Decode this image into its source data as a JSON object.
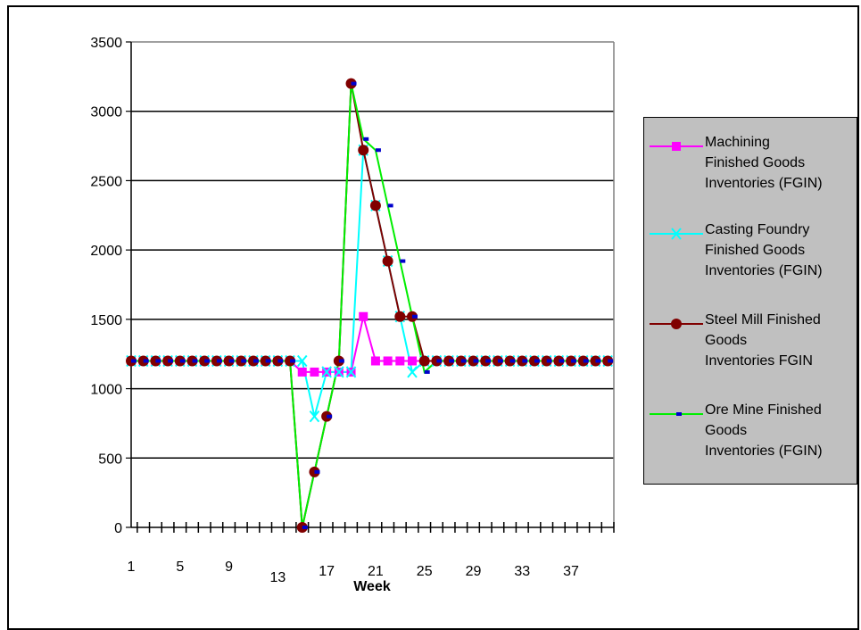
{
  "chart_data": {
    "type": "line",
    "xlabel": "Week",
    "ylabel": "",
    "ylim": [
      0,
      3500
    ],
    "yticks": [
      "0",
      "500",
      "1000",
      "1500",
      "2000",
      "2500",
      "3000",
      "3500"
    ],
    "xtick_labels": [
      {
        "week": 1,
        "label": "1"
      },
      {
        "week": 5,
        "label": "5"
      },
      {
        "week": 9,
        "label": "9"
      },
      {
        "week": 13,
        "label": "13"
      },
      {
        "week": 17,
        "label": "17"
      },
      {
        "week": 21,
        "label": "21"
      },
      {
        "week": 25,
        "label": "25"
      },
      {
        "week": 29,
        "label": "29"
      },
      {
        "week": 33,
        "label": "33"
      },
      {
        "week": 37,
        "label": "37"
      }
    ],
    "x": [
      1,
      2,
      3,
      4,
      5,
      6,
      7,
      8,
      9,
      10,
      11,
      12,
      13,
      14,
      15,
      16,
      17,
      18,
      19,
      20,
      21,
      22,
      23,
      24,
      25,
      26,
      27,
      28,
      29,
      30,
      31,
      32,
      33,
      34,
      35,
      36,
      37,
      38,
      39,
      40
    ],
    "grid": true,
    "legend_position": "right",
    "series": [
      {
        "name": "Machining Finished Goods Inventories (FGIN)",
        "color": "#ff00ff",
        "marker": "square",
        "values": [
          1200,
          1200,
          1200,
          1200,
          1200,
          1200,
          1200,
          1200,
          1200,
          1200,
          1200,
          1200,
          1200,
          1200,
          1120,
          1120,
          1120,
          1120,
          1120,
          1520,
          1200,
          1200,
          1200,
          1200,
          1200,
          1200,
          1200,
          1200,
          1200,
          1200,
          1200,
          1200,
          1200,
          1200,
          1200,
          1200,
          1200,
          1200,
          1200,
          1200
        ]
      },
      {
        "name": "Casting Foundry Finished Goods Inventories (FGIN)",
        "color": "#00ffff",
        "marker": "x",
        "values": [
          1200,
          1200,
          1200,
          1200,
          1200,
          1200,
          1200,
          1200,
          1200,
          1200,
          1200,
          1200,
          1200,
          1200,
          1200,
          800,
          1120,
          1120,
          1120,
          2720,
          2320,
          1920,
          1520,
          1120,
          1200,
          1200,
          1200,
          1200,
          1200,
          1200,
          1200,
          1200,
          1200,
          1200,
          1200,
          1200,
          1200,
          1200,
          1200,
          1200
        ]
      },
      {
        "name": "Steel Mill Finished Goods Inventories FGIN",
        "color": "#800000",
        "marker": "circle",
        "values": [
          1200,
          1200,
          1200,
          1200,
          1200,
          1200,
          1200,
          1200,
          1200,
          1200,
          1200,
          1200,
          1200,
          1200,
          0,
          400,
          800,
          1200,
          3200,
          2720,
          2320,
          1920,
          1520,
          1520,
          1200,
          1200,
          1200,
          1200,
          1200,
          1200,
          1200,
          1200,
          1200,
          1200,
          1200,
          1200,
          1200,
          1200,
          1200,
          1200
        ]
      },
      {
        "name": "Ore Mine Finished Goods Inventories (FGIN)",
        "color": "#00ee00",
        "marker": "dash",
        "marker_color": "#0000cc",
        "values": [
          1200,
          1200,
          1200,
          1200,
          1200,
          1200,
          1200,
          1200,
          1200,
          1200,
          1200,
          1200,
          1200,
          1200,
          0,
          400,
          800,
          1200,
          3200,
          2800,
          2720,
          2320,
          1920,
          1520,
          1120,
          1200,
          1200,
          1200,
          1200,
          1200,
          1200,
          1200,
          1200,
          1200,
          1200,
          1200,
          1200,
          1200,
          1200,
          1200
        ]
      }
    ]
  },
  "legend": {
    "items": [
      {
        "lines": [
          "Machining",
          "Finished Goods",
          "Inventories (FGIN)"
        ]
      },
      {
        "lines": [
          "Casting Foundry",
          "Finished Goods",
          "Inventories (FGIN)"
        ]
      },
      {
        "lines": [
          "Steel Mill Finished",
          "Goods",
          "Inventories FGIN"
        ]
      },
      {
        "lines": [
          "Ore Mine Finished",
          "Goods",
          "Inventories (FGIN)"
        ]
      }
    ]
  }
}
